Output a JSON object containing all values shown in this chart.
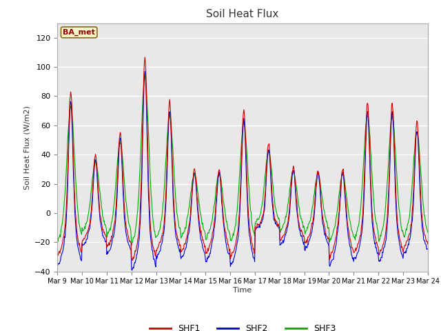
{
  "title": "Soil Heat Flux",
  "ylabel": "Soil Heat Flux (W/m2)",
  "xlabel": "Time",
  "ylim": [
    -40,
    130
  ],
  "yticks": [
    -40,
    -20,
    0,
    20,
    40,
    60,
    80,
    100,
    120
  ],
  "fig_bg_color": "#ffffff",
  "plot_bg_color": "#e8e8e8",
  "legend_label": "BA_met",
  "legend_bg": "#f5f5c8",
  "legend_border": "#8b6914",
  "series_colors": [
    "#cc0000",
    "#0000cc",
    "#00aa00"
  ],
  "series_labels": [
    "SHF1",
    "SHF2",
    "SHF3"
  ],
  "xtick_labels": [
    "Mar 9",
    "Mar 10",
    "Mar 11",
    "Mar 12",
    "Mar 13",
    "Mar 14",
    "Mar 15",
    "Mar 16",
    "Mar 17",
    "Mar 18",
    "Mar 19",
    "Mar 20",
    "Mar 21",
    "Mar 22",
    "Mar 23",
    "Mar 24"
  ],
  "n_days": 15,
  "n_points_per_day": 48,
  "day_peaks": [
    83,
    40,
    55,
    106,
    76,
    30,
    30,
    70,
    48,
    32,
    30,
    30,
    76,
    75,
    63
  ],
  "night_troughs": [
    -32,
    -20,
    -25,
    -35,
    -27,
    -28,
    -30,
    -32,
    -10,
    -20,
    -22,
    -32,
    -28,
    -30,
    -25
  ]
}
